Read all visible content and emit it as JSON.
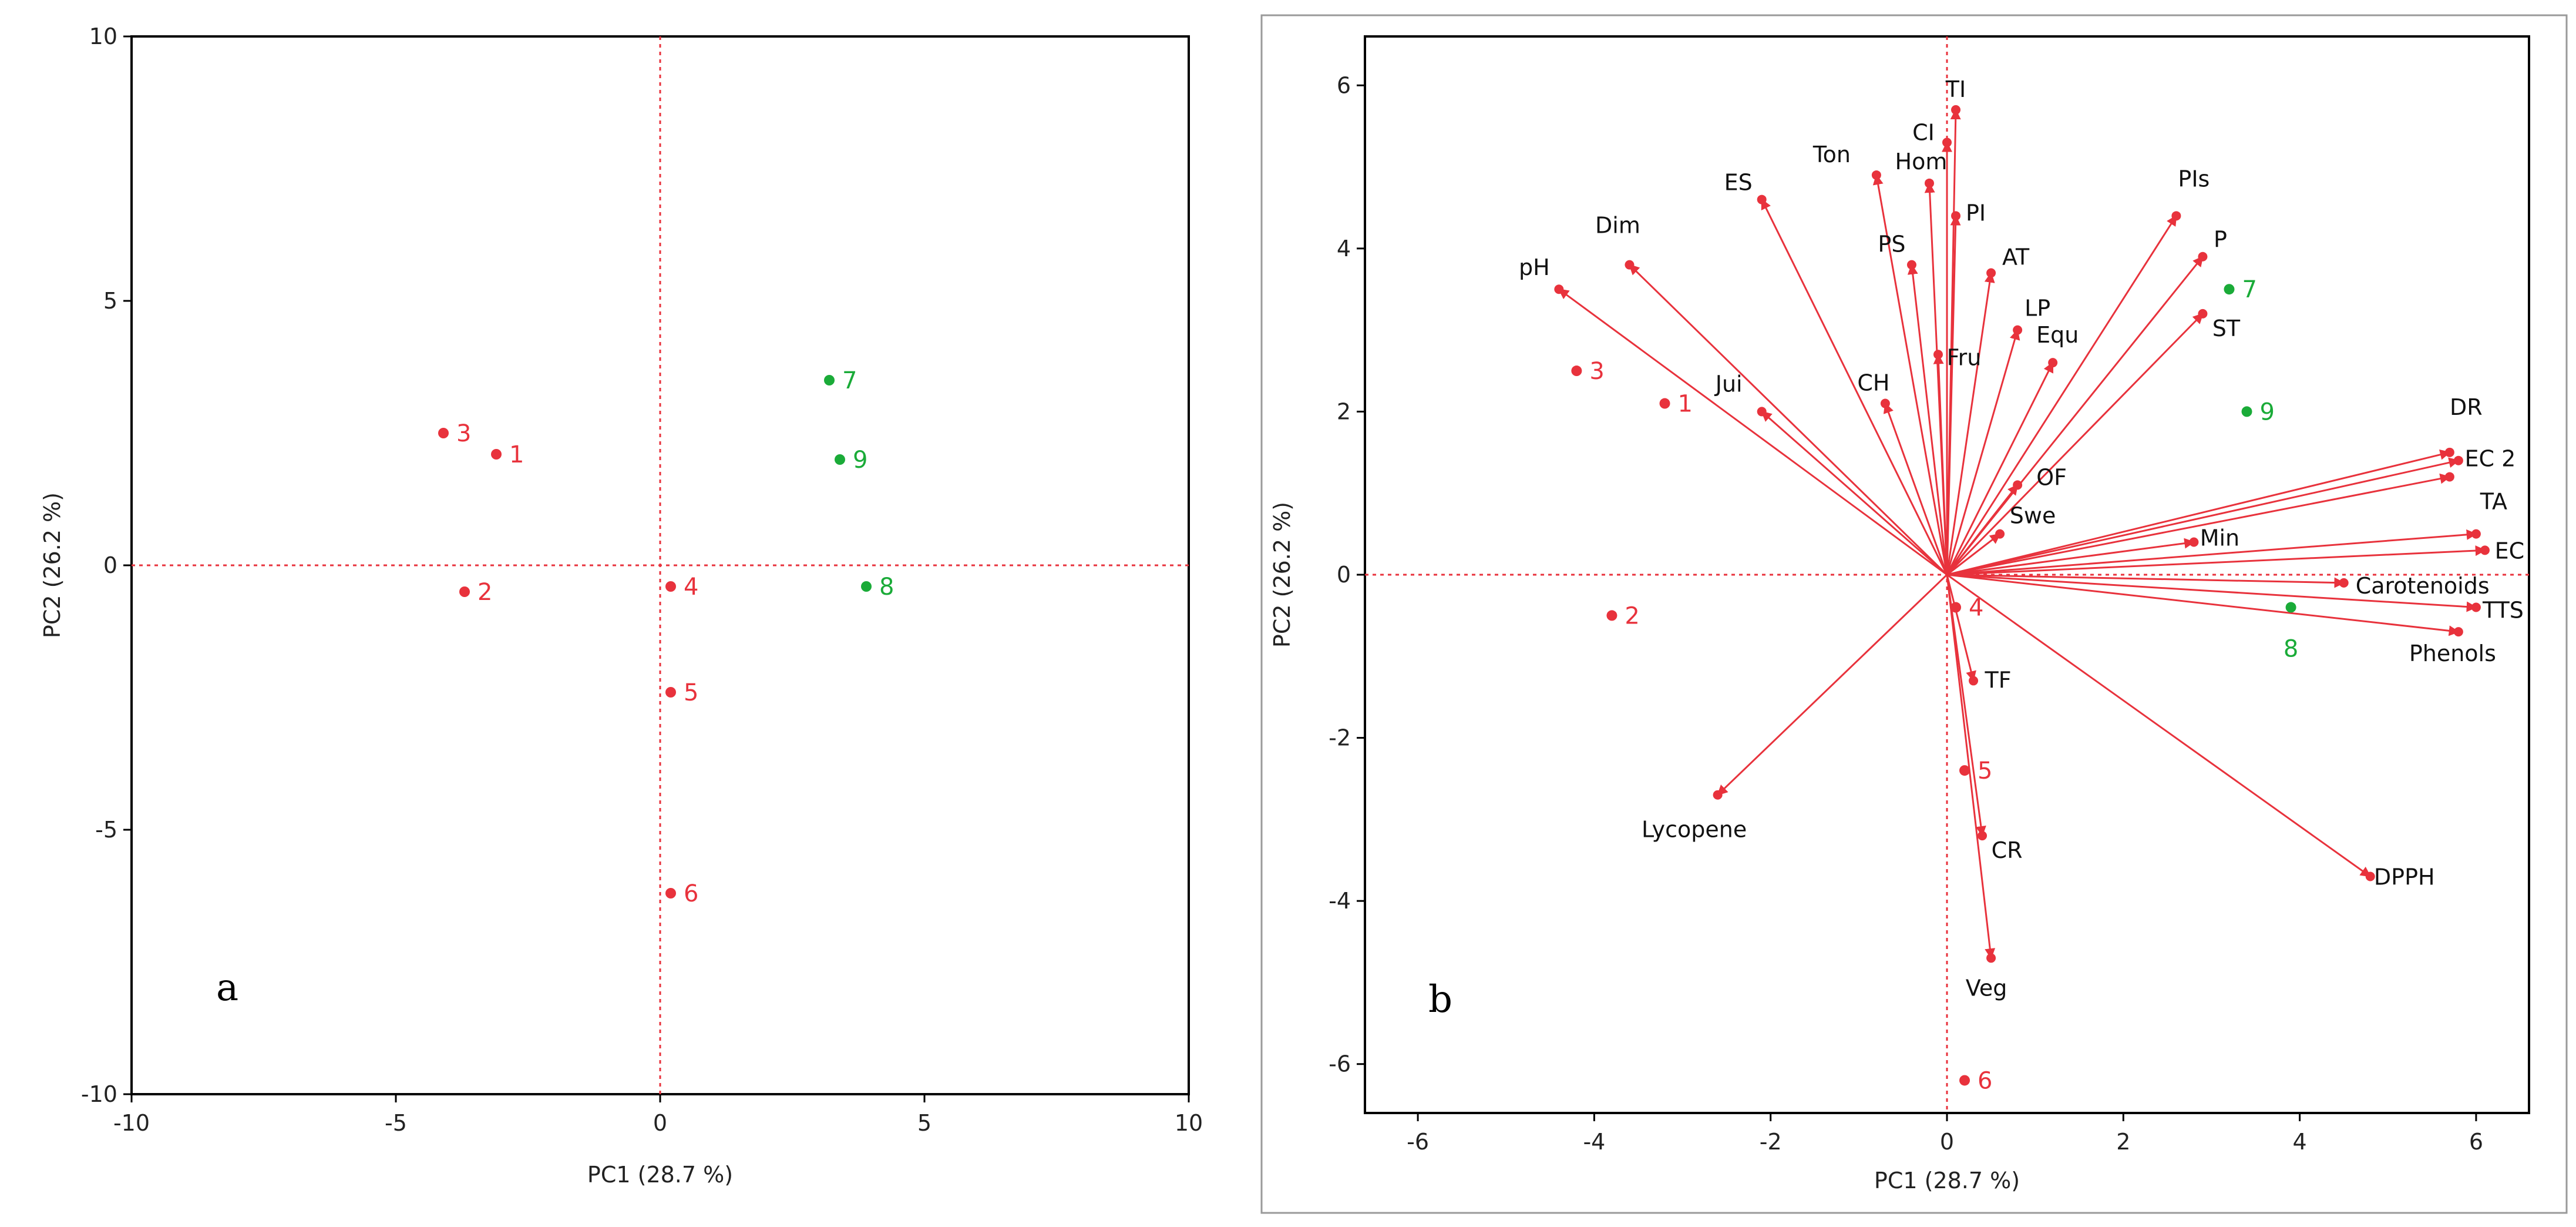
{
  "colors": {
    "red": "#e8323c",
    "green": "#1aab38",
    "axis": "#000000",
    "frame_b": "#9a9a9a"
  },
  "chart_data": [
    {
      "type": "scatter",
      "panel": "a",
      "xlabel": "PC1 (28.7 %)",
      "ylabel": "PC2 (26.2 %)",
      "xlim": [
        -10,
        10
      ],
      "ylim": [
        -10,
        10
      ],
      "xticks": [
        "-10",
        "-5",
        "0",
        "5",
        "10"
      ],
      "yticks": [
        "-10",
        "-5",
        "0",
        "5",
        "10"
      ],
      "grid": false,
      "points": [
        {
          "label": "1",
          "x": -3.1,
          "y": 2.1,
          "group": "red"
        },
        {
          "label": "2",
          "x": -3.7,
          "y": -0.5,
          "group": "red"
        },
        {
          "label": "3",
          "x": -4.1,
          "y": 2.5,
          "group": "red"
        },
        {
          "label": "4",
          "x": 0.2,
          "y": -0.4,
          "group": "red"
        },
        {
          "label": "5",
          "x": 0.2,
          "y": -2.4,
          "group": "red"
        },
        {
          "label": "6",
          "x": 0.2,
          "y": -6.2,
          "group": "red"
        },
        {
          "label": "7",
          "x": 3.2,
          "y": 3.5,
          "group": "green"
        },
        {
          "label": "8",
          "x": 3.9,
          "y": -0.4,
          "group": "green"
        },
        {
          "label": "9",
          "x": 3.4,
          "y": 2.0,
          "group": "green"
        }
      ]
    },
    {
      "type": "scatter",
      "subtype": "biplot",
      "panel": "b",
      "xlabel": "PC1 (28.7 %)",
      "ylabel": "PC2 (26.2 %)",
      "xlim": [
        -6.6,
        6.6
      ],
      "ylim": [
        -6.6,
        6.6
      ],
      "xticks": [
        "-6",
        "-4",
        "-2",
        "0",
        "2",
        "4",
        "6"
      ],
      "yticks": [
        "-6",
        "-4",
        "-2",
        "0",
        "2",
        "4",
        "6"
      ],
      "grid": false,
      "points": [
        {
          "label": "1",
          "x": -3.2,
          "y": 2.1,
          "group": "red"
        },
        {
          "label": "2",
          "x": -3.8,
          "y": -0.5,
          "group": "red"
        },
        {
          "label": "3",
          "x": -4.2,
          "y": 2.5,
          "group": "red"
        },
        {
          "label": "4",
          "x": 0.1,
          "y": -0.4,
          "group": "red"
        },
        {
          "label": "5",
          "x": 0.2,
          "y": -2.4,
          "group": "red"
        },
        {
          "label": "6",
          "x": 0.2,
          "y": -6.2,
          "group": "red"
        },
        {
          "label": "7",
          "x": 3.2,
          "y": 3.5,
          "group": "green"
        },
        {
          "label": "8",
          "x": 3.9,
          "y": -0.4,
          "group": "green"
        },
        {
          "label": "9",
          "x": 3.4,
          "y": 2.0,
          "group": "green"
        }
      ],
      "vectors": [
        {
          "label": "TI",
          "x": 0.1,
          "y": 5.7
        },
        {
          "label": "CI",
          "x": 0.0,
          "y": 5.3
        },
        {
          "label": "Hom",
          "x": -0.2,
          "y": 4.8
        },
        {
          "label": "Ton",
          "x": -0.8,
          "y": 4.9
        },
        {
          "label": "ES",
          "x": -2.1,
          "y": 4.6
        },
        {
          "label": "PI",
          "x": 0.1,
          "y": 4.4
        },
        {
          "label": "PS",
          "x": -0.4,
          "y": 3.8
        },
        {
          "label": "AT",
          "x": 0.5,
          "y": 3.7
        },
        {
          "label": "Dim",
          "x": -3.6,
          "y": 3.8
        },
        {
          "label": "pH",
          "x": -4.4,
          "y": 3.5
        },
        {
          "label": "LP",
          "x": 0.8,
          "y": 3.0
        },
        {
          "label": "Fru",
          "x": -0.1,
          "y": 2.7
        },
        {
          "label": "Equ",
          "x": 1.2,
          "y": 2.6
        },
        {
          "label": "CH",
          "x": -0.7,
          "y": 2.1
        },
        {
          "label": "Jui",
          "x": -2.1,
          "y": 2.0
        },
        {
          "label": "PIs",
          "x": 2.6,
          "y": 4.4
        },
        {
          "label": "P",
          "x": 2.9,
          "y": 3.9
        },
        {
          "label": "ST",
          "x": 2.9,
          "y": 3.2
        },
        {
          "label": "OF",
          "x": 0.8,
          "y": 1.1
        },
        {
          "label": "Swe",
          "x": 0.6,
          "y": 0.5
        },
        {
          "label": "DR",
          "x": 5.7,
          "y": 1.5
        },
        {
          "label": "EC 2",
          "x": 5.8,
          "y": 1.4
        },
        {
          "label": "",
          "x": 5.7,
          "y": 1.2
        },
        {
          "label": "TA",
          "x": 6.0,
          "y": 0.5
        },
        {
          "label": "EC",
          "x": 6.1,
          "y": 0.3
        },
        {
          "label": "Min",
          "x": 2.8,
          "y": 0.4
        },
        {
          "label": "Carotenoids",
          "x": 4.5,
          "y": -0.1
        },
        {
          "label": "TTS",
          "x": 6.0,
          "y": -0.4
        },
        {
          "label": "Phenols",
          "x": 5.8,
          "y": -0.7
        },
        {
          "label": "DPPH",
          "x": 4.8,
          "y": -3.7
        },
        {
          "label": "TF",
          "x": 0.3,
          "y": -1.3
        },
        {
          "label": "CR",
          "x": 0.4,
          "y": -3.2
        },
        {
          "label": "Veg",
          "x": 0.5,
          "y": -4.7
        },
        {
          "label": "Lycopene",
          "x": -2.6,
          "y": -2.7
        }
      ]
    }
  ],
  "panels": {
    "a_letter": "a",
    "b_letter": "b"
  }
}
